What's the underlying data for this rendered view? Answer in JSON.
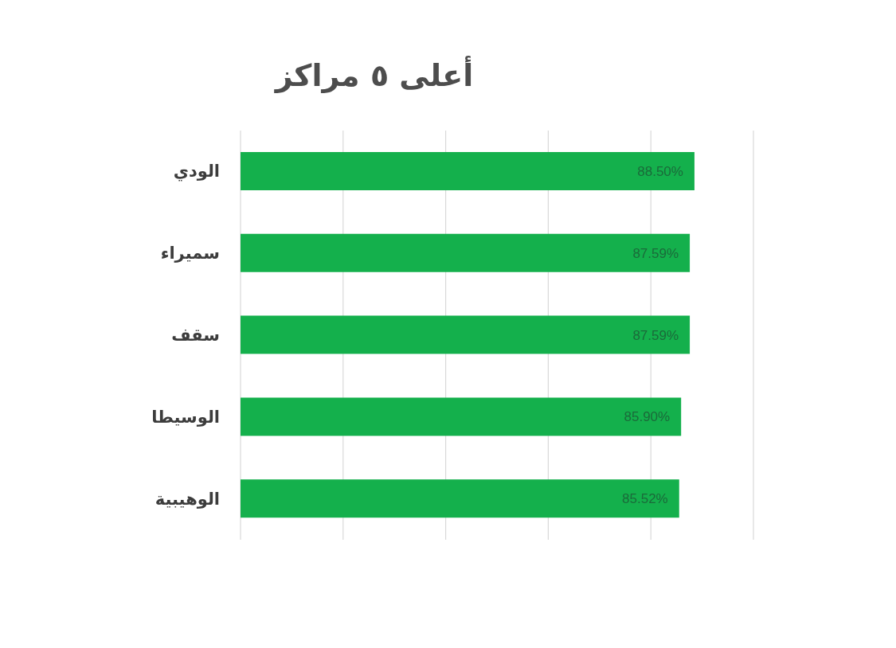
{
  "chart_data": {
    "type": "bar",
    "orientation": "horizontal",
    "title": "أعلى ٥ مراكز",
    "categories": [
      "الودي",
      "سميراء",
      "سقف",
      "الوسيطا",
      "الوهيبية"
    ],
    "values": [
      88.5,
      87.59,
      87.59,
      85.9,
      85.52
    ],
    "value_labels": [
      "88.50%",
      "87.59%",
      "87.59%",
      "85.90%",
      "85.52%"
    ],
    "color": "#14b04c",
    "xlim": [
      0,
      100
    ],
    "xticks": [
      {
        "value": 0,
        "label": null
      },
      {
        "value": 20,
        "label": null
      },
      {
        "value": 40,
        "label": null
      },
      {
        "value": 60,
        "label": null
      },
      {
        "value": 80,
        "label": null
      },
      {
        "value": 100,
        "label": null
      }
    ],
    "grid": "x",
    "tick_labels": "y"
  }
}
